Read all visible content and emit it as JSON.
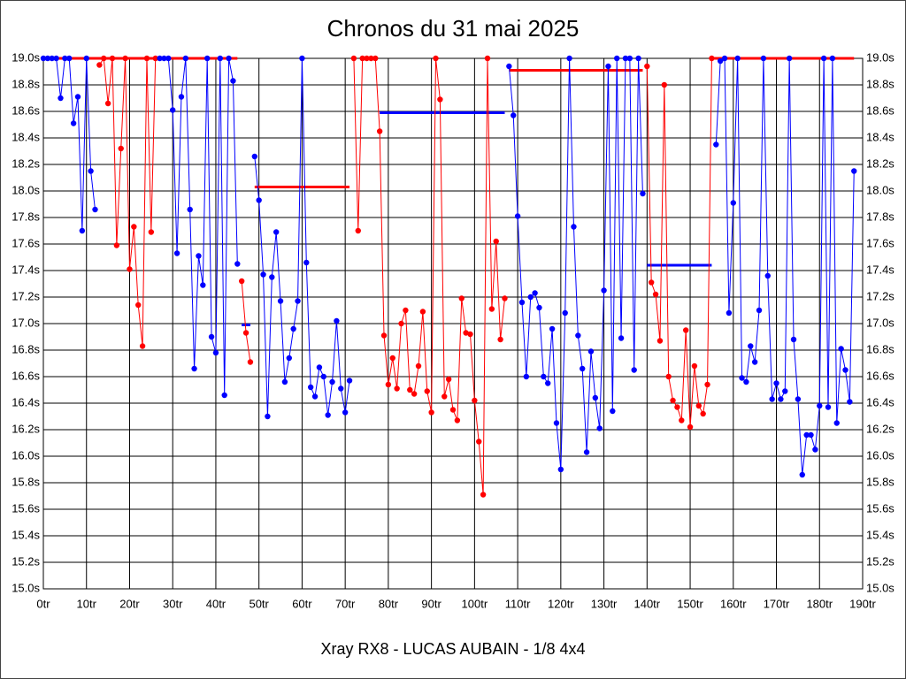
{
  "chart_data": {
    "type": "line",
    "title": "Chronos du 31 mai 2025",
    "x_label": "Xray RX8 - LUCAS AUBAIN - 1/8 4x4",
    "xlim": [
      0,
      190
    ],
    "ylim": [
      15.0,
      19.0
    ],
    "grid": true,
    "right_axis": true,
    "xticks": [
      {
        "value": 0,
        "label": "0tr"
      },
      {
        "value": 10,
        "label": "10tr"
      },
      {
        "value": 20,
        "label": "20tr"
      },
      {
        "value": 30,
        "label": "30tr"
      },
      {
        "value": 40,
        "label": "40tr"
      },
      {
        "value": 50,
        "label": "50tr"
      },
      {
        "value": 60,
        "label": "60tr"
      },
      {
        "value": 70,
        "label": "70tr"
      },
      {
        "value": 80,
        "label": "80tr"
      },
      {
        "value": 90,
        "label": "90tr"
      },
      {
        "value": 100,
        "label": "100tr"
      },
      {
        "value": 110,
        "label": "110tr"
      },
      {
        "value": 120,
        "label": "120tr"
      },
      {
        "value": 130,
        "label": "130tr"
      },
      {
        "value": 140,
        "label": "140tr"
      },
      {
        "value": 150,
        "label": "150tr"
      },
      {
        "value": 160,
        "label": "160tr"
      },
      {
        "value": 170,
        "label": "170tr"
      },
      {
        "value": 180,
        "label": "180tr"
      },
      {
        "value": 190,
        "label": "190tr"
      }
    ],
    "yticks": [
      {
        "value": 15.0,
        "label": "15.0s"
      },
      {
        "value": 15.2,
        "label": "15.2s"
      },
      {
        "value": 15.4,
        "label": "15.4s"
      },
      {
        "value": 15.6,
        "label": "15.6s"
      },
      {
        "value": 15.8,
        "label": "15.8s"
      },
      {
        "value": 16.0,
        "label": "16.0s"
      },
      {
        "value": 16.2,
        "label": "16.2s"
      },
      {
        "value": 16.4,
        "label": "16.4s"
      },
      {
        "value": 16.6,
        "label": "16.6s"
      },
      {
        "value": 16.8,
        "label": "16.8s"
      },
      {
        "value": 17.0,
        "label": "17.0s"
      },
      {
        "value": 17.2,
        "label": "17.2s"
      },
      {
        "value": 17.4,
        "label": "17.4s"
      },
      {
        "value": 17.6,
        "label": "17.6s"
      },
      {
        "value": 17.8,
        "label": "17.8s"
      },
      {
        "value": 18.0,
        "label": "18.0s"
      },
      {
        "value": 18.2,
        "label": "18.2s"
      },
      {
        "value": 18.4,
        "label": "18.4s"
      },
      {
        "value": 18.6,
        "label": "18.6s"
      },
      {
        "value": 18.8,
        "label": "18.8s"
      },
      {
        "value": 19.0,
        "label": "19.0s"
      }
    ],
    "series": [
      {
        "color": "#0000ff",
        "x": [
          0,
          1,
          2,
          3,
          4,
          5,
          6,
          7,
          8,
          9,
          10,
          11,
          12
        ],
        "values": [
          19.0,
          19.0,
          19.0,
          19.0,
          18.7,
          19.0,
          19.0,
          18.51,
          18.71,
          17.7,
          19.0,
          18.15,
          17.86
        ]
      },
      {
        "color": "#ff0000",
        "x": [
          13,
          14,
          15,
          16,
          17,
          18,
          19,
          20,
          21,
          22,
          23,
          24,
          25,
          26
        ],
        "values": [
          18.95,
          19.0,
          18.66,
          19.0,
          17.59,
          18.32,
          19.0,
          17.41,
          17.73,
          17.14,
          16.83,
          19.0,
          17.69,
          19.0
        ]
      },
      {
        "color": "#0000ff",
        "x": [
          27,
          28,
          29,
          30,
          31,
          32,
          33,
          34,
          35,
          36,
          37,
          38,
          39,
          40,
          41,
          42,
          43,
          44,
          45
        ],
        "values": [
          19.0,
          19.0,
          19.0,
          18.61,
          17.53,
          18.71,
          19.0,
          17.86,
          16.66,
          17.51,
          17.29,
          19.0,
          16.9,
          16.78,
          19.0,
          16.46,
          19.0,
          18.83,
          17.45
        ]
      },
      {
        "color": "#ff0000",
        "x": [
          46,
          47,
          48
        ],
        "values": [
          17.32,
          16.93,
          16.71
        ]
      },
      {
        "color": "#0000ff",
        "x": [
          49,
          50,
          51,
          52,
          53,
          54,
          55,
          56,
          57,
          58,
          59,
          60,
          61,
          62,
          63,
          64,
          65,
          66,
          67,
          68,
          69,
          70,
          71
        ],
        "values": [
          18.26,
          17.93,
          17.37,
          16.3,
          17.35,
          17.69,
          17.17,
          16.56,
          16.74,
          16.96,
          17.17,
          19.0,
          17.46,
          16.52,
          16.45,
          16.67,
          16.6,
          16.31,
          16.56,
          17.02,
          16.51,
          16.33,
          16.57
        ]
      },
      {
        "color": "#ff0000",
        "x": [
          72,
          73,
          74,
          75,
          76,
          77,
          78,
          79,
          80,
          81,
          82,
          83,
          84,
          85,
          86,
          87,
          88,
          89,
          90,
          91,
          92,
          93,
          94,
          95,
          96,
          97,
          98,
          99,
          100,
          101,
          102,
          103,
          104,
          105,
          106,
          107
        ],
        "values": [
          19.0,
          17.7,
          19.0,
          19.0,
          19.0,
          19.0,
          18.45,
          16.91,
          16.54,
          16.74,
          16.51,
          17.0,
          17.1,
          16.5,
          16.47,
          16.68,
          17.09,
          16.49,
          16.33,
          19.0,
          18.69,
          16.45,
          16.58,
          16.35,
          16.27,
          17.19,
          16.93,
          16.92,
          16.42,
          16.11,
          15.71,
          19.0,
          17.11,
          17.62,
          16.88,
          17.19
        ]
      },
      {
        "color": "#0000ff",
        "x": [
          108,
          109,
          110,
          111,
          112,
          113,
          114,
          115,
          116,
          117,
          118,
          119,
          120,
          121,
          122,
          123,
          124,
          125,
          126,
          127,
          128,
          129,
          130,
          131,
          132,
          133,
          134,
          135,
          136,
          137,
          138,
          139
        ],
        "values": [
          18.94,
          18.57,
          17.81,
          17.16,
          16.6,
          17.2,
          17.23,
          17.12,
          16.6,
          16.55,
          16.96,
          16.25,
          15.9,
          17.08,
          19.0,
          17.73,
          16.91,
          16.66,
          16.03,
          16.79,
          16.44,
          16.21,
          17.25,
          18.94,
          16.34,
          19.0,
          16.89,
          19.0,
          19.0,
          16.65,
          19.0,
          17.98
        ]
      },
      {
        "color": "#ff0000",
        "x": [
          140,
          141,
          142,
          143,
          144,
          145,
          146,
          147,
          148,
          149,
          150,
          151,
          152,
          153,
          154,
          155
        ],
        "values": [
          18.94,
          17.31,
          17.22,
          16.87,
          18.8,
          16.6,
          16.42,
          16.37,
          16.27,
          16.95,
          16.22,
          16.68,
          16.38,
          16.32,
          16.54,
          19.0
        ]
      },
      {
        "color": "#0000ff",
        "x": [
          156,
          157,
          158,
          159,
          160,
          161,
          162,
          163,
          164,
          165,
          166,
          167,
          168,
          169,
          170,
          171,
          172,
          173,
          174,
          175,
          176,
          177,
          178,
          179,
          180,
          181,
          182,
          183,
          184,
          185,
          186,
          187,
          188
        ],
        "values": [
          18.35,
          18.98,
          19.0,
          17.08,
          17.91,
          19.0,
          16.59,
          16.56,
          16.83,
          16.71,
          17.1,
          19.0,
          17.36,
          16.43,
          16.55,
          16.43,
          16.49,
          19.0,
          16.88,
          16.43,
          15.86,
          16.16,
          16.16,
          16.05,
          16.38,
          19.0,
          16.37,
          19.0,
          16.25,
          16.81,
          16.65,
          16.41,
          18.15
        ]
      }
    ],
    "averages": [
      {
        "color": "#ff0000",
        "x": [
          0,
          45
        ],
        "value": 19.0
      },
      {
        "color": "#0000ff",
        "x": [
          46,
          48
        ],
        "value": 16.99
      },
      {
        "color": "#ff0000",
        "x": [
          49,
          71
        ],
        "value": 18.03
      },
      {
        "color": "#0000ff",
        "x": [
          78,
          107
        ],
        "value": 18.59
      },
      {
        "color": "#ff0000",
        "x": [
          108,
          139
        ],
        "value": 18.91
      },
      {
        "color": "#0000ff",
        "x": [
          140,
          155
        ],
        "value": 17.44
      },
      {
        "color": "#ff0000",
        "x": [
          155,
          188
        ],
        "value": 19.0
      }
    ]
  }
}
